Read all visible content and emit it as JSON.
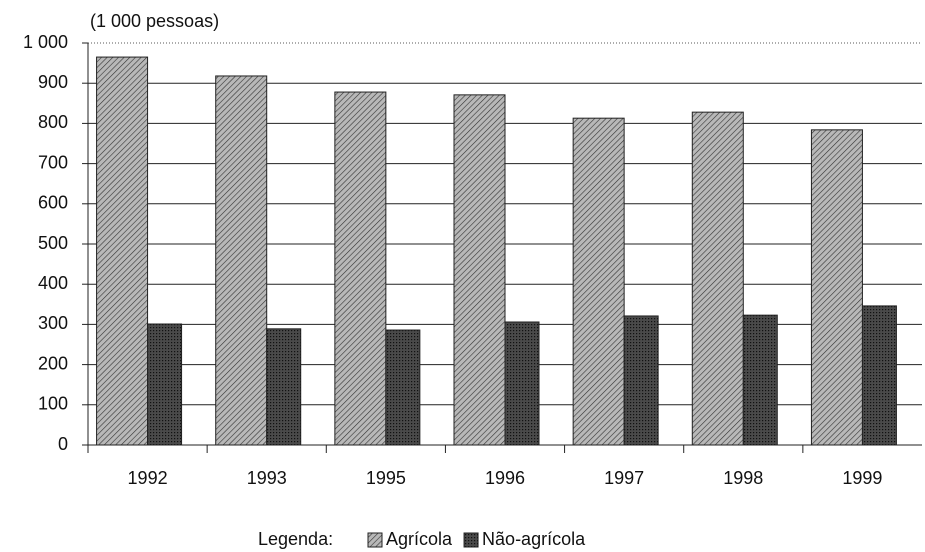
{
  "chart_data": {
    "type": "bar",
    "unit_label": "(1 000 pessoas)",
    "categories": [
      "1992",
      "1993",
      "1995",
      "1996",
      "1997",
      "1998",
      "1999"
    ],
    "series": [
      {
        "name": "Agrícola",
        "color": "#b8b8b8",
        "values": [
          965,
          918,
          878,
          871,
          813,
          828,
          784
        ]
      },
      {
        "name": "Não-agrícola",
        "color": "#4a4a4a",
        "values": [
          301,
          289,
          286,
          306,
          321,
          323,
          346
        ]
      }
    ],
    "ylim": [
      0,
      1000
    ],
    "yticks": [
      0,
      100,
      200,
      300,
      400,
      500,
      600,
      700,
      800,
      900,
      {
        "value": 1000,
        "label": "1 000"
      }
    ],
    "grid": true,
    "legend_title": "Legenda:",
    "legend": "bottom"
  }
}
